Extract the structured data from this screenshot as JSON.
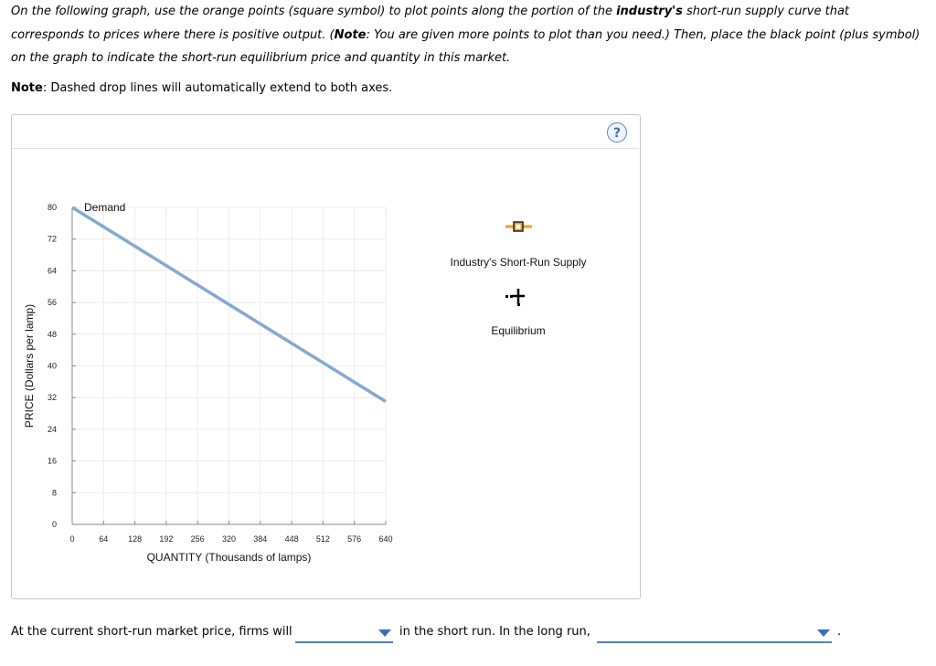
{
  "instructions": {
    "part1": "On the following graph, use the orange points (square symbol) to plot points along the portion of the ",
    "bold1": "industry's",
    "part2": " short-run supply curve that corresponds to prices where there is positive output. (",
    "bold2": "Note",
    "part3": ": You are given more points to plot than you need.) Then, place the black point (plus symbol) on the graph to indicate the short-run equilibrium price and quantity in this market."
  },
  "note": {
    "label": "Note",
    "text": ": Dashed drop lines will automatically extend to both axes."
  },
  "help_icon": "?",
  "chart_data": {
    "type": "line",
    "xlabel": "QUANTITY (Thousands of lamps)",
    "ylabel": "PRICE (Dollars per lamp)",
    "x_ticks": [
      "0",
      "64",
      "128",
      "192",
      "256",
      "320",
      "384",
      "448",
      "512",
      "576",
      "640"
    ],
    "y_ticks": [
      "0",
      "8",
      "16",
      "24",
      "32",
      "40",
      "48",
      "56",
      "64",
      "72",
      "80"
    ],
    "xlim": [
      0,
      640
    ],
    "ylim": [
      0,
      80
    ],
    "grid": true,
    "series": [
      {
        "name": "Demand",
        "color": "#86a9cf",
        "points": [
          [
            0,
            80
          ],
          [
            640,
            31
          ]
        ]
      }
    ]
  },
  "palette": {
    "supply_tool": {
      "label": "Industry's Short-Run Supply",
      "color": "#f39c24",
      "icon": "orange-square-point"
    },
    "equilibrium_tool": {
      "label": "Equilibrium",
      "color": "#000000",
      "icon": "black-plus-point"
    }
  },
  "bottom": {
    "text1": "At the current short-run market price, firms will",
    "select1_value": "",
    "text2": "in the short run. In the long run,",
    "select2_value": "",
    "end": "."
  }
}
